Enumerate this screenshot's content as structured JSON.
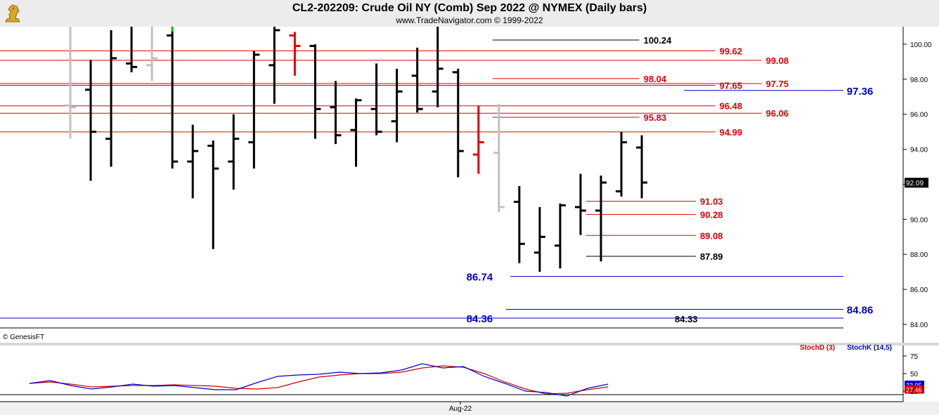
{
  "header": {
    "title": "CL2-202209:  Crude Oil NY (Comb) Sep 2022 @ NYMEX  (Daily bars)",
    "subtitle": "www.TradeNavigator.com © 1999-2022",
    "logo_icon": "gold-chess-knight-logo-icon"
  },
  "copyright": "© GenesisFT",
  "x_axis": {
    "labels": [
      "Aug-22"
    ]
  },
  "colors": {
    "background": "#ffffff",
    "panel": "#f0f0f0",
    "red": "#e00000",
    "blue": "#0000cc",
    "black": "#000000",
    "gray": "#c0c0c0",
    "green": "#00cc00",
    "stochD": "#cc0000",
    "stochK": "#0000cc"
  },
  "chart_data": [
    {
      "type": "ohlc",
      "title": "CL2-202209:  Crude Oil NY (Comb) Sep 2022 @ NYMEX  (Daily bars)",
      "y_range": [
        83.8,
        101.0
      ],
      "y_ticks": [
        "84.00",
        "86.00",
        "88.00",
        "90.00",
        "92.00",
        "94.00",
        "96.00",
        "98.00",
        "100.00"
      ],
      "last_price": "92.09",
      "bars": [
        {
          "o": 96.5,
          "h": 101.5,
          "l": 94.6,
          "c": 96.4,
          "color": "gray"
        },
        {
          "o": 97.4,
          "h": 99.1,
          "l": 92.2,
          "c": 95.0,
          "color": "black"
        },
        {
          "o": 94.6,
          "h": 100.8,
          "l": 93.0,
          "c": 99.2,
          "color": "black"
        },
        {
          "o": 98.9,
          "h": 101.0,
          "l": 98.4,
          "c": 98.7,
          "color": "black"
        },
        {
          "o": 98.8,
          "h": 101.5,
          "l": 97.9,
          "c": 99.2,
          "color": "gray"
        },
        {
          "o": 100.5,
          "h": 101.0,
          "l": 92.9,
          "c": 93.3,
          "color": "black",
          "hilite": "green"
        },
        {
          "o": 93.3,
          "h": 95.4,
          "l": 91.2,
          "c": 93.9,
          "color": "black"
        },
        {
          "o": 94.2,
          "h": 94.5,
          "l": 88.3,
          "c": 92.9,
          "color": "black"
        },
        {
          "o": 93.3,
          "h": 96.0,
          "l": 91.7,
          "c": 94.6,
          "color": "black"
        },
        {
          "o": 94.4,
          "h": 99.6,
          "l": 92.9,
          "c": 99.4,
          "color": "black"
        },
        {
          "o": 98.8,
          "h": 101.0,
          "l": 96.6,
          "c": 100.8,
          "color": "black"
        },
        {
          "o": 100.5,
          "h": 100.7,
          "l": 98.2,
          "c": 99.9,
          "color": "red"
        },
        {
          "o": 99.9,
          "h": 100.0,
          "l": 94.6,
          "c": 96.3,
          "color": "black"
        },
        {
          "o": 96.4,
          "h": 97.9,
          "l": 94.3,
          "c": 94.8,
          "color": "black"
        },
        {
          "o": 95.1,
          "h": 96.9,
          "l": 93.0,
          "c": 96.8,
          "color": "black"
        },
        {
          "o": 96.3,
          "h": 98.9,
          "l": 94.8,
          "c": 95.0,
          "color": "black"
        },
        {
          "o": 95.6,
          "h": 98.6,
          "l": 94.4,
          "c": 97.3,
          "color": "black"
        },
        {
          "o": 98.2,
          "h": 99.8,
          "l": 96.1,
          "c": 96.3,
          "color": "black"
        },
        {
          "o": 97.3,
          "h": 101.0,
          "l": 96.4,
          "c": 98.6,
          "color": "black"
        },
        {
          "o": 98.4,
          "h": 98.6,
          "l": 92.4,
          "c": 93.9,
          "color": "black"
        },
        {
          "o": 93.7,
          "h": 96.5,
          "l": 92.6,
          "c": 94.4,
          "color": "red"
        },
        {
          "o": 93.8,
          "h": 96.6,
          "l": 90.4,
          "c": 90.7,
          "color": "gray"
        },
        {
          "o": 91.0,
          "h": 91.9,
          "l": 87.5,
          "c": 88.6,
          "color": "black"
        },
        {
          "o": 88.1,
          "h": 90.7,
          "l": 87.0,
          "c": 89.0,
          "color": "black"
        },
        {
          "o": 88.5,
          "h": 90.9,
          "l": 87.2,
          "c": 90.8,
          "color": "black"
        },
        {
          "o": 90.7,
          "h": 92.6,
          "l": 89.1,
          "c": 90.5,
          "color": "black"
        },
        {
          "o": 90.5,
          "h": 92.5,
          "l": 87.6,
          "c": 92.1,
          "color": "black"
        },
        {
          "o": 91.6,
          "h": 95.0,
          "l": 91.3,
          "c": 94.4,
          "color": "black"
        },
        {
          "o": 94.1,
          "h": 94.8,
          "l": 91.2,
          "c": 92.1,
          "color": "black"
        }
      ],
      "levels": [
        {
          "price": 100.24,
          "label": "100.24",
          "color": "black",
          "x0": 0.584,
          "x1": 0.758,
          "label_pos": 0.763
        },
        {
          "price": 99.62,
          "label": "99.62",
          "color": "red",
          "x0": 0.0,
          "x1": 0.848,
          "label_pos": 0.853
        },
        {
          "price": 99.08,
          "label": "99.08",
          "color": "red",
          "x0": 0.0,
          "x1": 0.903,
          "label_pos": 0.908
        },
        {
          "price": 98.04,
          "label": "98.04",
          "color": "red",
          "x0": 0.584,
          "x1": 0.758,
          "label_pos": 0.763
        },
        {
          "price": 97.75,
          "label": "97.75",
          "color": "red",
          "x0": 0.0,
          "x1": 0.903,
          "label_pos": 0.908
        },
        {
          "price": 97.65,
          "label": "97.65",
          "color": "red",
          "x0": 0.0,
          "x1": 0.848,
          "label_pos": 0.853
        },
        {
          "price": 97.36,
          "label": "97.36",
          "color": "blue",
          "x0": 0.811,
          "x1": 1.0,
          "label_pos": 1.004,
          "out": true
        },
        {
          "price": 96.48,
          "label": "96.48",
          "color": "red",
          "x0": 0.0,
          "x1": 0.848,
          "label_pos": 0.853
        },
        {
          "price": 96.06,
          "label": "96.06",
          "color": "red",
          "x0": 0.0,
          "x1": 0.903,
          "label_pos": 0.908
        },
        {
          "price": 95.83,
          "label": "95.83",
          "color": "red",
          "x0": 0.584,
          "x1": 0.758,
          "label_pos": 0.763
        },
        {
          "price": 94.99,
          "label": "94.99",
          "color": "red",
          "x0": 0.0,
          "x1": 0.848,
          "label_pos": 0.853
        },
        {
          "price": 91.03,
          "label": "91.03",
          "color": "red",
          "x0": 0.695,
          "x1": 0.825,
          "label_pos": 0.83
        },
        {
          "price": 90.28,
          "label": "90.28",
          "color": "red",
          "x0": 0.695,
          "x1": 0.825,
          "label_pos": 0.83
        },
        {
          "price": 89.08,
          "label": "89.08",
          "color": "red",
          "x0": 0.695,
          "x1": 0.825,
          "label_pos": 0.83
        },
        {
          "price": 87.89,
          "label": "87.89",
          "color": "black",
          "x0": 0.695,
          "x1": 0.825,
          "label_pos": 0.83
        },
        {
          "price": 86.74,
          "label": "86.74",
          "color": "blue",
          "x0": 0.605,
          "x1": 1.0,
          "label_pos": 0.553,
          "left": true
        },
        {
          "price": 84.86,
          "label": "84.86",
          "color": "blue",
          "x0": 0.6,
          "x1": 1.0,
          "label_pos": 1.004,
          "out": true
        },
        {
          "price": 84.36,
          "label": "84.36",
          "color": "blue",
          "x0": 0.0,
          "x1": 1.0,
          "label_pos": 0.553,
          "left": true
        },
        {
          "price": 84.33,
          "label": "84.33",
          "color": "black",
          "x0": 0.0,
          "x1": 0.0,
          "label_pos": 0.8
        }
      ]
    },
    {
      "type": "line",
      "title": "",
      "y_range": [
        10,
        90
      ],
      "y_ticks": [
        "25",
        "50",
        "75"
      ],
      "legend": [
        {
          "name": "StochD (3)",
          "color": "#cc0000"
        },
        {
          "name": "StochK (14,5)",
          "color": "#0000cc"
        }
      ],
      "last_values": {
        "StochD": "27.46",
        "StochK": "33.95"
      },
      "series": [
        {
          "name": "StochD (3)",
          "values": [
            36,
            38,
            35,
            31,
            32,
            33,
            33,
            34,
            33,
            32,
            29,
            28,
            30,
            38,
            45,
            48,
            50,
            50,
            52,
            58,
            61,
            59,
            50,
            38,
            28,
            21,
            22,
            27,
            31
          ]
        },
        {
          "name": "StochK (14,5)",
          "values": [
            36,
            40,
            33,
            28,
            31,
            35,
            32,
            33,
            30,
            27,
            27,
            37,
            46,
            48,
            49,
            52,
            50,
            51,
            55,
            64,
            58,
            60,
            46,
            36,
            25,
            23,
            18,
            29,
            35
          ]
        }
      ]
    }
  ]
}
